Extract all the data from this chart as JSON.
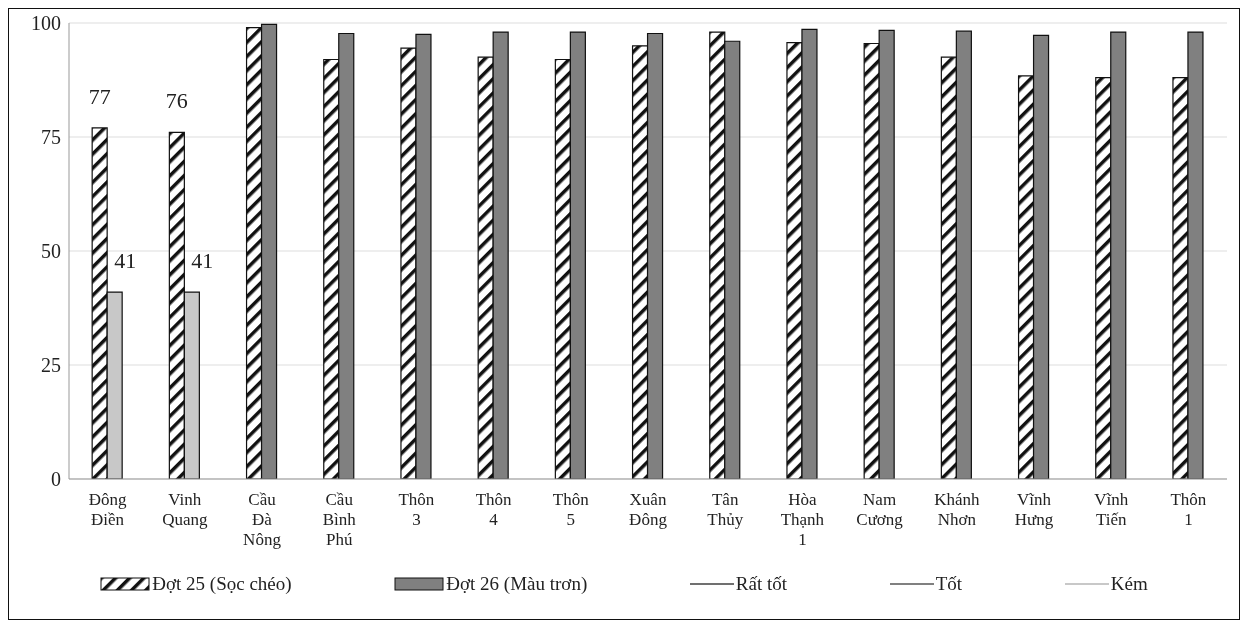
{
  "chart_data": {
    "type": "bar",
    "categories": [
      "Đông Điền",
      "Vinh Quang",
      "Cầu Đà Nông",
      "Cầu Bình Phú",
      "Thôn 3",
      "Thôn 4",
      "Thôn 5",
      "Xuân Đông",
      "Tân Thủy",
      "Hòa Thạnh 1",
      "Nam Cương",
      "Khánh Nhơn",
      "Vĩnh Hưng",
      "Vĩnh Tiến",
      "Thôn 1"
    ],
    "series": [
      {
        "name": "Đợt 25 (Sọc chéo)",
        "color": "#111111",
        "values": [
          77,
          76,
          99,
          92,
          94.5,
          92.5,
          92,
          95,
          98,
          95.7,
          95.5,
          92.5,
          88.4,
          88,
          88
        ],
        "value_labels": [
          "77",
          "76",
          null,
          null,
          null,
          null,
          null,
          null,
          null,
          null,
          null,
          null,
          null,
          null,
          null
        ]
      },
      {
        "name": "Đợt 26 (Màu trơn)",
        "color": "#808080",
        "colors": [
          "#c8c8c8",
          "#c8c8c8",
          "#808080",
          "#808080",
          "#808080",
          "#808080",
          "#808080",
          "#808080",
          "#808080",
          "#808080",
          "#808080",
          "#808080",
          "#808080",
          "#808080",
          "#808080"
        ],
        "values": [
          41,
          41,
          99.7,
          97.7,
          97.5,
          98,
          98,
          97.7,
          96,
          98.6,
          98.4,
          98.2,
          97.3,
          98,
          98
        ],
        "value_labels": [
          "41",
          "41",
          null,
          null,
          null,
          null,
          null,
          null,
          null,
          null,
          null,
          null,
          null,
          null,
          null
        ]
      },
      {
        "name": "Rất tốt",
        "type": "line",
        "color": "#707070",
        "values": [
          null,
          null,
          null,
          null,
          null,
          null,
          null,
          null,
          null,
          null,
          null,
          null,
          null,
          null,
          null
        ]
      },
      {
        "name": "Tốt",
        "type": "line",
        "color": "#808080",
        "values": [
          null,
          null,
          null,
          null,
          null,
          null,
          null,
          null,
          null,
          null,
          null,
          null,
          null,
          null,
          null
        ]
      },
      {
        "name": "Kém",
        "type": "line",
        "color": "#c8c8c8",
        "values": [
          null,
          null,
          null,
          null,
          null,
          null,
          null,
          null,
          null,
          null,
          null,
          null,
          null,
          null,
          null
        ]
      }
    ],
    "ylim": [
      0,
      100
    ],
    "yticks": [
      0,
      25,
      50,
      75,
      100
    ],
    "grid": "y",
    "legend": "bottom"
  }
}
